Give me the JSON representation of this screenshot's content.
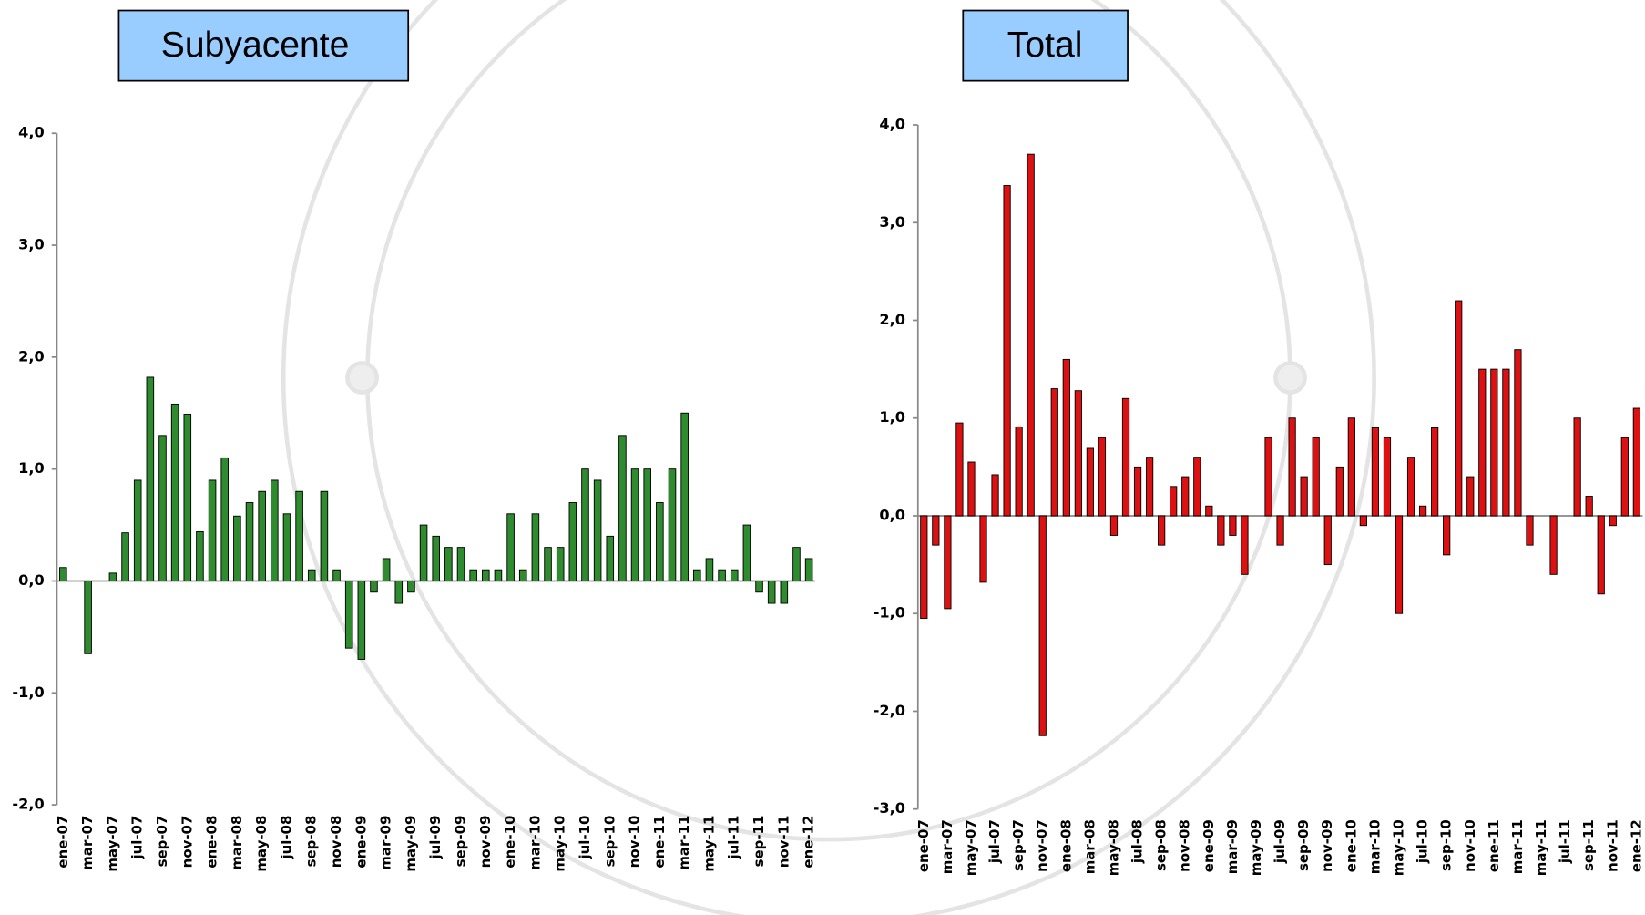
{
  "chart_data": [
    {
      "type": "bar",
      "title": "Subyacente",
      "color": "#2e8b2e",
      "categories": [
        "ene-07",
        null,
        "mar-07",
        null,
        "may-07",
        null,
        "jul-07",
        null,
        "sep-07",
        null,
        "nov-07",
        null,
        "ene-08",
        null,
        "mar-08",
        null,
        "may-08",
        null,
        "jul-08",
        null,
        "sep-08",
        null,
        "nov-08",
        null,
        "ene-09",
        null,
        "mar-09",
        null,
        "may-09",
        null,
        "jul-09",
        null,
        "sep-09",
        null,
        "nov-09",
        null,
        "ene-10",
        null,
        "mar-10",
        null,
        "may-10",
        null,
        "jul-10",
        null,
        "sep-10",
        null,
        "nov-10",
        null,
        "ene-11",
        null,
        "mar-11",
        null,
        "may-11",
        null,
        "jul-11",
        null,
        "sep-11",
        null,
        "nov-11",
        null,
        "ene-12"
      ],
      "values": [
        0.12,
        0,
        -0.65,
        0,
        0.07,
        0.43,
        0.9,
        1.82,
        1.3,
        1.58,
        1.49,
        0.44,
        0.9,
        1.1,
        0.58,
        0.7,
        0.8,
        0.9,
        0.6,
        0.8,
        0.1,
        0.8,
        0.1,
        -0.6,
        -0.7,
        -0.1,
        0.2,
        -0.2,
        -0.1,
        0.5,
        0.4,
        0.3,
        0.3,
        0.1,
        0.1,
        0.1,
        0.6,
        0.1,
        0.6,
        0.3,
        0.3,
        0.7,
        1.0,
        0.9,
        0.4,
        1.3,
        1.0,
        1.0,
        0.7,
        1.0,
        1.5,
        0.1,
        0.2,
        0.1,
        0.1,
        0.5,
        -0.1,
        -0.2,
        -0.2,
        0.3,
        0.2
      ],
      "ylim": [
        -2,
        4
      ],
      "yticks": [
        {
          "value": -2,
          "label": "-2,0"
        },
        {
          "value": -1,
          "label": "-1,0"
        },
        {
          "value": 0,
          "label": "0,0"
        },
        {
          "value": 1,
          "label": "1,0"
        },
        {
          "value": 2,
          "label": "2,0"
        },
        {
          "value": 3,
          "label": "3,0"
        },
        {
          "value": 4,
          "label": "4,0"
        }
      ]
    },
    {
      "type": "bar",
      "title": "Total",
      "color": "#dd1111",
      "categories": [
        "ene-07",
        null,
        "mar-07",
        null,
        "may-07",
        null,
        "jul-07",
        null,
        "sep-07",
        null,
        "nov-07",
        null,
        "ene-08",
        null,
        "mar-08",
        null,
        "may-08",
        null,
        "jul-08",
        null,
        "sep-08",
        null,
        "nov-08",
        null,
        "ene-09",
        null,
        "mar-09",
        null,
        "may-09",
        null,
        "jul-09",
        null,
        "sep-09",
        null,
        "nov-09",
        null,
        "ene-10",
        null,
        "mar-10",
        null,
        "may-10",
        null,
        "jul-10",
        null,
        "sep-10",
        null,
        "nov-10",
        null,
        "ene-11",
        null,
        "mar-11",
        null,
        "may-11",
        null,
        "jul-11",
        null,
        "sep-11",
        null,
        "nov-11",
        null,
        "ene-12"
      ],
      "values": [
        -1.05,
        -0.3,
        -0.95,
        0.95,
        0.55,
        -0.68,
        0.42,
        3.38,
        0.91,
        3.7,
        -2.25,
        1.3,
        1.6,
        1.28,
        0.69,
        0.8,
        -0.2,
        1.2,
        0.5,
        0.6,
        -0.3,
        0.3,
        0.4,
        0.6,
        0.1,
        -0.3,
        -0.2,
        -0.6,
        0,
        0.8,
        -0.3,
        1.0,
        0.4,
        0.8,
        -0.5,
        0.5,
        1.0,
        -0.1,
        0.9,
        0.8,
        -1.0,
        0.6,
        0.1,
        0.9,
        -0.4,
        2.2,
        0.4,
        1.5,
        1.5,
        1.5,
        1.7,
        -0.3,
        0,
        -0.6,
        0,
        1.0,
        0.2,
        -0.8,
        -0.1,
        0.8,
        1.1
      ],
      "ylim": [
        -3,
        4
      ],
      "yticks": [
        {
          "value": -3,
          "label": "-3,0"
        },
        {
          "value": -2,
          "label": "-2,0"
        },
        {
          "value": -1,
          "label": "-1,0"
        },
        {
          "value": 0,
          "label": "0,0"
        },
        {
          "value": 1,
          "label": "1,0"
        },
        {
          "value": 2,
          "label": "2,0"
        },
        {
          "value": 3,
          "label": "3,0"
        },
        {
          "value": 4,
          "label": "4,0"
        }
      ]
    }
  ]
}
